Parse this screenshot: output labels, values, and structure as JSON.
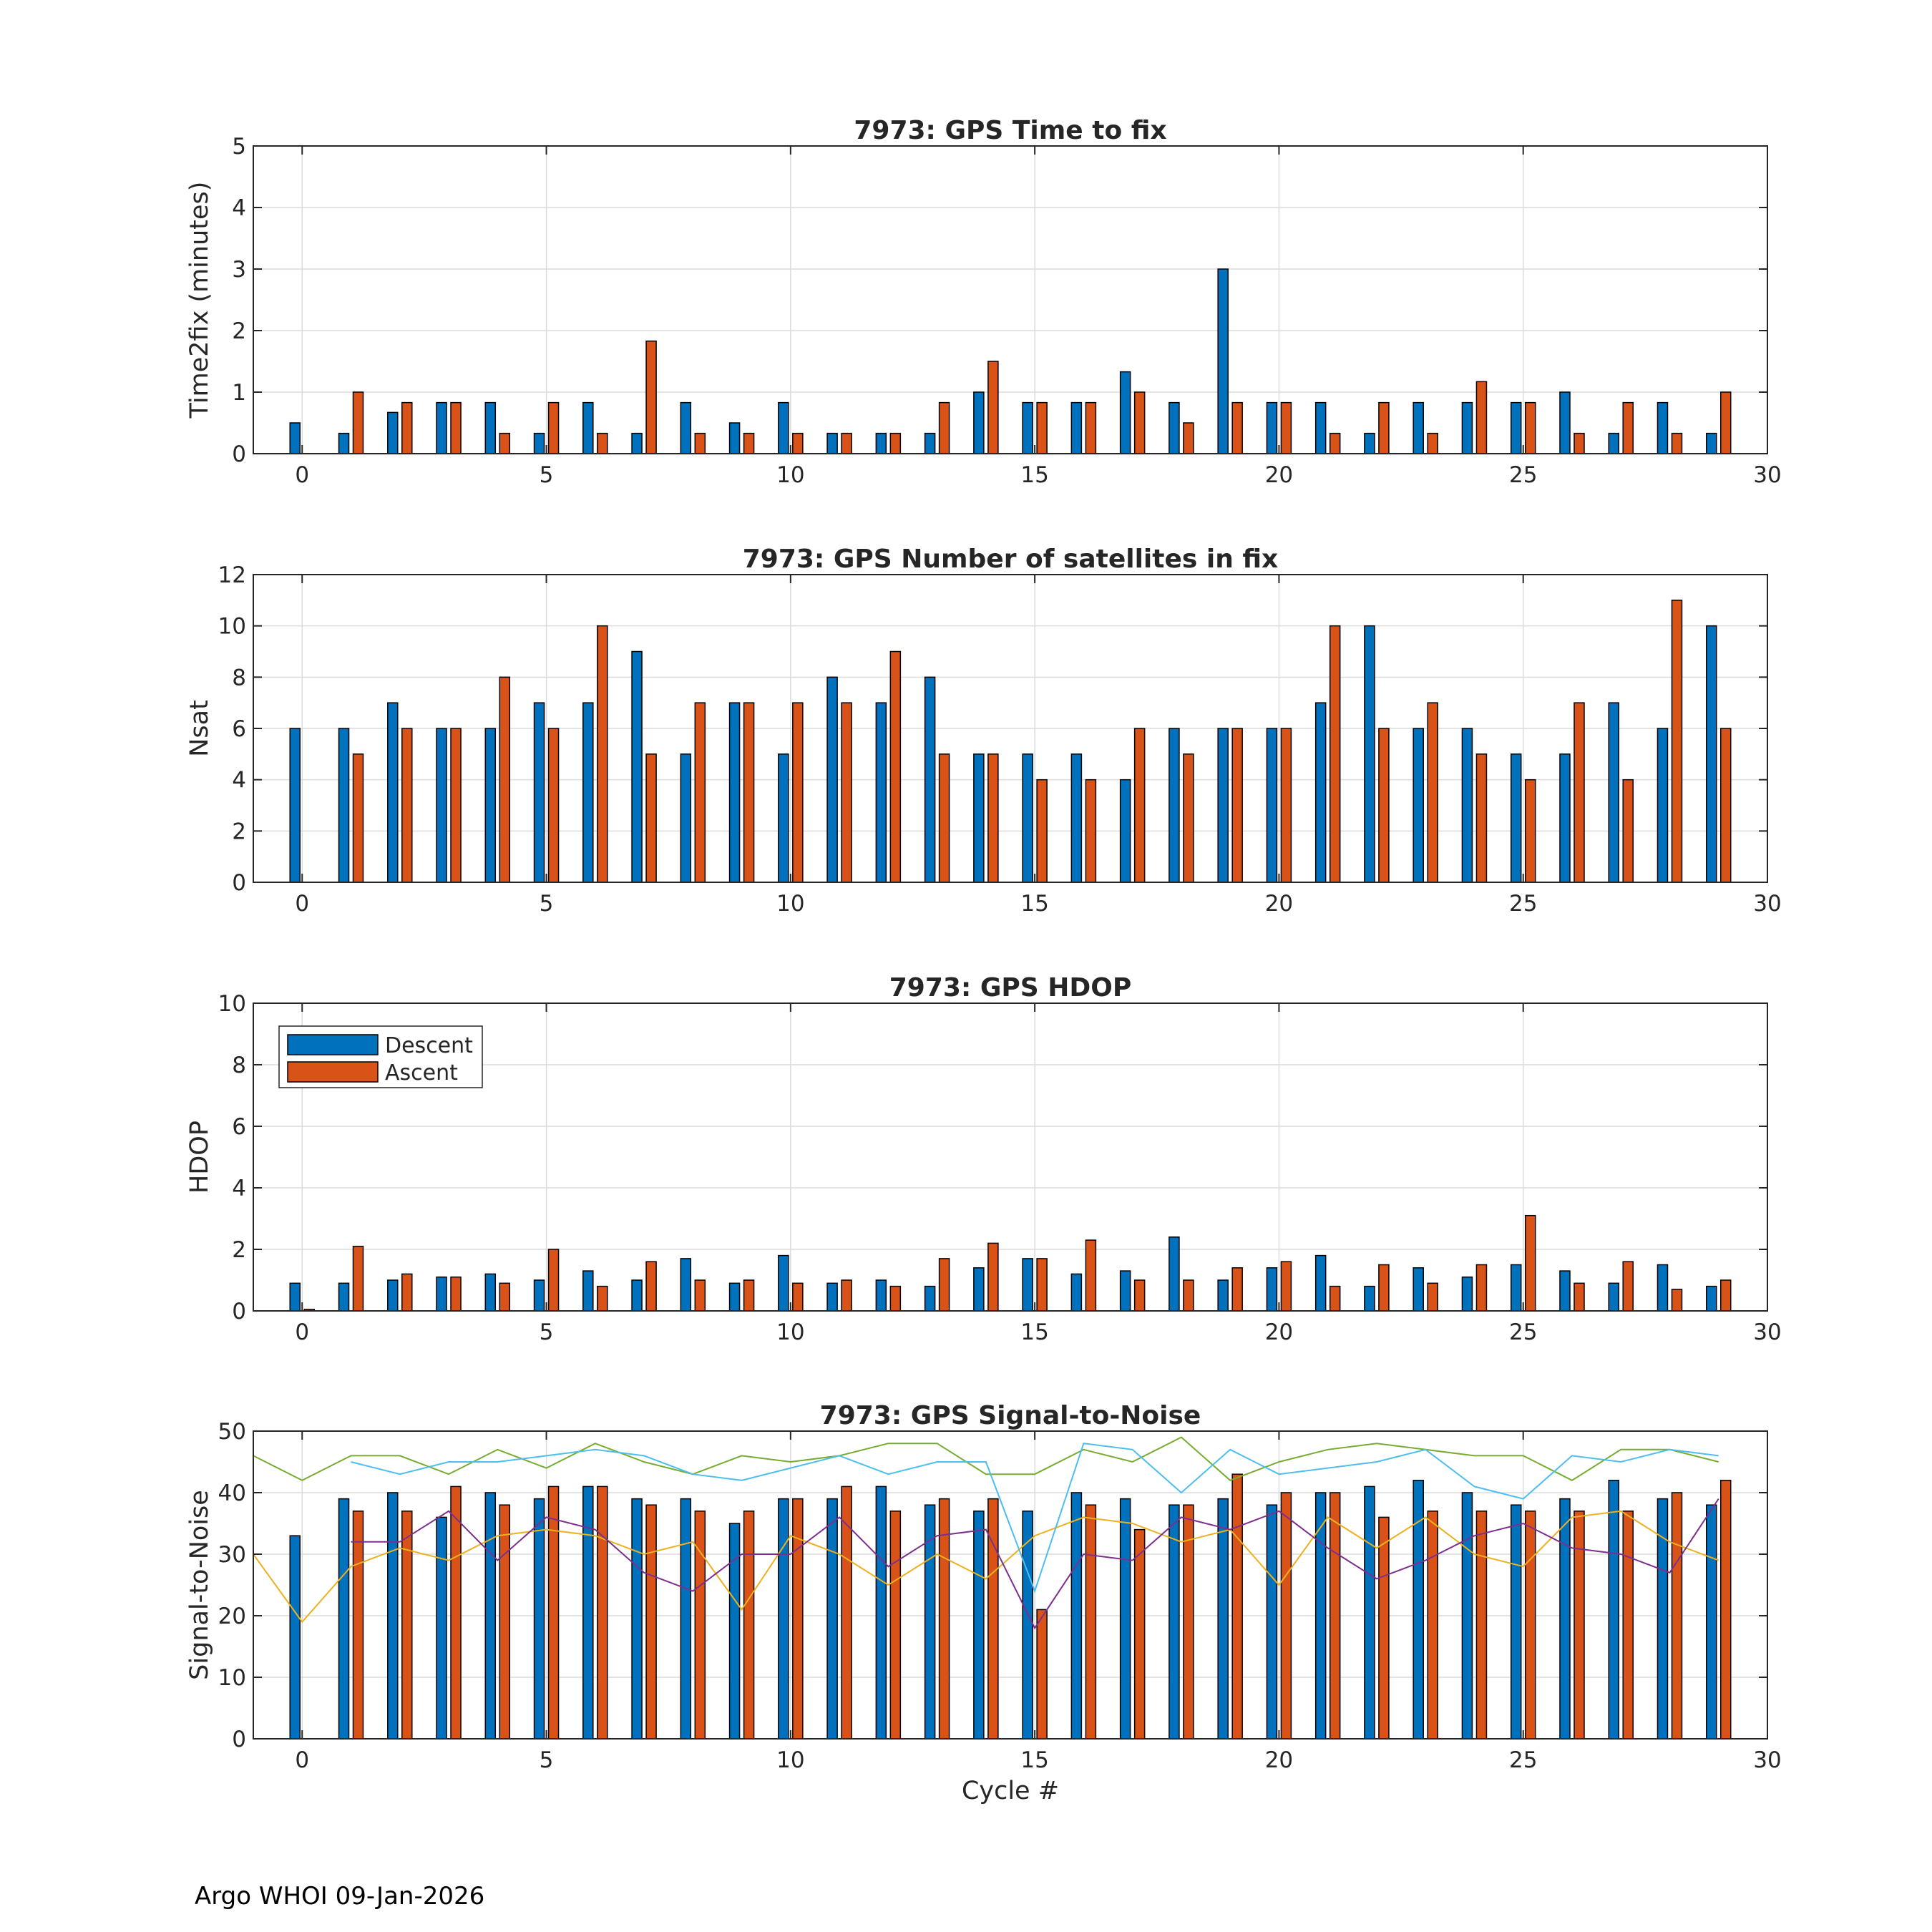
{
  "footer": "Argo WHOI 09-Jan-2026",
  "colors": {
    "descent": "#0072BD",
    "ascent": "#D95319",
    "snr_lines": [
      "#EDB120",
      "#7E2F8E",
      "#77AC30",
      "#4DBEEE"
    ],
    "grid": "#dcdcdc",
    "axis": "#262626"
  },
  "legend": {
    "descent": "Descent",
    "ascent": "Ascent"
  },
  "chart_data": [
    {
      "type": "bar",
      "title": "7973: GPS Time to fix",
      "ylabel": "Time2fix (minutes)",
      "xlabel": "",
      "xlim": [
        -1,
        30
      ],
      "ylim": [
        0,
        5
      ],
      "xticks": [
        0,
        5,
        10,
        15,
        20,
        25,
        30
      ],
      "yticks": [
        0,
        1,
        2,
        3,
        4,
        5
      ],
      "x": [
        0,
        1,
        2,
        3,
        4,
        5,
        6,
        7,
        8,
        9,
        10,
        11,
        12,
        13,
        14,
        15,
        16,
        17,
        18,
        19,
        20,
        21,
        22,
        23,
        24,
        25,
        26,
        27,
        28,
        29
      ],
      "series": [
        {
          "key": "descent",
          "values": [
            0.5,
            0.33,
            0.67,
            0.83,
            0.83,
            0.33,
            0.83,
            0.33,
            0.83,
            0.5,
            0.83,
            0.33,
            0.33,
            0.33,
            1.0,
            0.83,
            0.83,
            1.33,
            0.83,
            3.0,
            0.83,
            0.83,
            0.33,
            0.83,
            0.83,
            0.83,
            1.0,
            0.33,
            0.83,
            0.33
          ]
        },
        {
          "key": "ascent",
          "values": [
            null,
            1.0,
            0.83,
            0.83,
            0.33,
            0.83,
            0.33,
            1.83,
            0.33,
            0.33,
            0.33,
            0.33,
            0.33,
            0.83,
            1.5,
            0.83,
            0.83,
            1.0,
            0.5,
            0.83,
            0.83,
            0.33,
            0.83,
            0.33,
            1.17,
            0.83,
            0.33,
            0.83,
            0.33,
            1.0
          ]
        }
      ]
    },
    {
      "type": "bar",
      "title": "7973: GPS Number of satellites in fix",
      "ylabel": "Nsat",
      "xlabel": "",
      "xlim": [
        -1,
        30
      ],
      "ylim": [
        0,
        12
      ],
      "xticks": [
        0,
        5,
        10,
        15,
        20,
        25,
        30
      ],
      "yticks": [
        0,
        2,
        4,
        6,
        8,
        10,
        12
      ],
      "x": [
        0,
        1,
        2,
        3,
        4,
        5,
        6,
        7,
        8,
        9,
        10,
        11,
        12,
        13,
        14,
        15,
        16,
        17,
        18,
        19,
        20,
        21,
        22,
        23,
        24,
        25,
        26,
        27,
        28,
        29
      ],
      "series": [
        {
          "key": "descent",
          "values": [
            6,
            6,
            7,
            6,
            6,
            7,
            7,
            9,
            5,
            7,
            5,
            8,
            7,
            8,
            5,
            5,
            5,
            4,
            6,
            6,
            6,
            7,
            10,
            6,
            6,
            5,
            5,
            7,
            6,
            10
          ]
        },
        {
          "key": "ascent",
          "values": [
            null,
            5,
            6,
            6,
            8,
            6,
            10,
            5,
            7,
            7,
            7,
            7,
            9,
            5,
            5,
            4,
            4,
            6,
            5,
            6,
            6,
            10,
            6,
            7,
            5,
            4,
            7,
            4,
            11,
            6
          ]
        }
      ]
    },
    {
      "type": "bar",
      "title": "7973: GPS HDOP",
      "ylabel": "HDOP",
      "xlabel": "",
      "xlim": [
        -1,
        30
      ],
      "ylim": [
        0,
        10
      ],
      "xticks": [
        0,
        5,
        10,
        15,
        20,
        25,
        30
      ],
      "yticks": [
        0,
        2,
        4,
        6,
        8,
        10
      ],
      "legend": "top-left",
      "x": [
        0,
        1,
        2,
        3,
        4,
        5,
        6,
        7,
        8,
        9,
        10,
        11,
        12,
        13,
        14,
        15,
        16,
        17,
        18,
        19,
        20,
        21,
        22,
        23,
        24,
        25,
        26,
        27,
        28,
        29
      ],
      "series": [
        {
          "key": "descent",
          "values": [
            0.9,
            0.9,
            1.0,
            1.1,
            1.2,
            1.0,
            1.3,
            1.0,
            1.7,
            0.9,
            1.8,
            0.9,
            1.0,
            0.8,
            1.4,
            1.7,
            1.2,
            1.3,
            2.4,
            1.0,
            1.4,
            1.8,
            0.8,
            1.4,
            1.1,
            1.5,
            1.3,
            0.9,
            1.5,
            0.8
          ]
        },
        {
          "key": "ascent",
          "values": [
            0.05,
            2.1,
            1.2,
            1.1,
            0.9,
            2.0,
            0.8,
            1.6,
            1.0,
            1.0,
            0.9,
            1.0,
            0.8,
            1.7,
            2.2,
            1.7,
            2.3,
            1.0,
            1.0,
            1.4,
            1.6,
            0.8,
            1.5,
            0.9,
            1.5,
            3.1,
            0.9,
            1.6,
            0.7,
            1.0
          ]
        }
      ]
    },
    {
      "type": "bar",
      "title": "7973: GPS Signal-to-Noise",
      "ylabel": "Signal-to-Noise",
      "xlabel": "Cycle #",
      "xlim": [
        -1,
        30
      ],
      "ylim": [
        0,
        50
      ],
      "xticks": [
        0,
        5,
        10,
        15,
        20,
        25,
        30
      ],
      "yticks": [
        0,
        10,
        20,
        30,
        40,
        50
      ],
      "x": [
        0,
        1,
        2,
        3,
        4,
        5,
        6,
        7,
        8,
        9,
        10,
        11,
        12,
        13,
        14,
        15,
        16,
        17,
        18,
        19,
        20,
        21,
        22,
        23,
        24,
        25,
        26,
        27,
        28,
        29
      ],
      "series": [
        {
          "key": "descent",
          "values": [
            33,
            39,
            40,
            36,
            40,
            39,
            41,
            39,
            39,
            35,
            39,
            39,
            41,
            38,
            37,
            37,
            40,
            39,
            38,
            39,
            38,
            40,
            41,
            42,
            40,
            38,
            39,
            42,
            39,
            38
          ]
        },
        {
          "key": "ascent",
          "values": [
            null,
            37,
            37,
            41,
            38,
            41,
            41,
            38,
            37,
            37,
            39,
            41,
            37,
            39,
            39,
            21,
            38,
            34,
            38,
            43,
            40,
            40,
            36,
            37,
            37,
            37,
            37,
            37,
            40,
            42
          ]
        }
      ],
      "lines": [
        {
          "x": [
            -1,
            0,
            1,
            2,
            3,
            4,
            5,
            6,
            7,
            8,
            9,
            10,
            11,
            12,
            13,
            14,
            15,
            16,
            17,
            18,
            19,
            20,
            21,
            22,
            23,
            24,
            25,
            26,
            27,
            28,
            29
          ],
          "values": [
            30,
            19,
            28,
            31,
            29,
            33,
            34,
            33,
            30,
            32,
            21,
            33,
            30,
            25,
            30,
            26,
            33,
            36,
            35,
            32,
            34,
            25,
            36,
            31,
            36,
            30,
            28,
            36,
            37,
            32,
            29
          ]
        },
        {
          "x": [
            1,
            2,
            3,
            4,
            5,
            6,
            7,
            8,
            9,
            10,
            11,
            12,
            13,
            14,
            15,
            16,
            17,
            18,
            19,
            20,
            21,
            22,
            23,
            24,
            25,
            26,
            27,
            28,
            29
          ],
          "values": [
            32,
            32,
            37,
            29,
            36,
            34,
            27,
            24,
            30,
            30,
            36,
            28,
            33,
            34,
            18,
            30,
            29,
            36,
            34,
            37,
            31,
            26,
            29,
            33,
            35,
            31,
            30,
            27,
            39
          ]
        },
        {
          "x": [
            -1,
            0,
            1,
            2,
            3,
            4,
            5,
            6,
            7,
            8,
            9,
            10,
            11,
            12,
            13,
            14,
            15,
            16,
            17,
            18,
            19,
            20,
            21,
            22,
            23,
            24,
            25,
            26,
            27,
            28,
            29
          ],
          "values": [
            46,
            42,
            46,
            46,
            43,
            47,
            44,
            48,
            45,
            43,
            46,
            45,
            46,
            48,
            48,
            43,
            43,
            47,
            45,
            49,
            42,
            45,
            47,
            48,
            47,
            46,
            46,
            42,
            47,
            47,
            45
          ]
        },
        {
          "x": [
            1,
            2,
            3,
            4,
            5,
            6,
            7,
            8,
            9,
            10,
            11,
            12,
            13,
            14,
            15,
            16,
            17,
            18,
            19,
            20,
            21,
            22,
            23,
            24,
            25,
            26,
            27,
            28,
            29
          ],
          "values": [
            45,
            43,
            45,
            45,
            46,
            47,
            46,
            43,
            42,
            44,
            46,
            43,
            45,
            45,
            24,
            48,
            47,
            40,
            47,
            43,
            44,
            45,
            47,
            41,
            39,
            46,
            45,
            47,
            46
          ]
        }
      ]
    }
  ]
}
